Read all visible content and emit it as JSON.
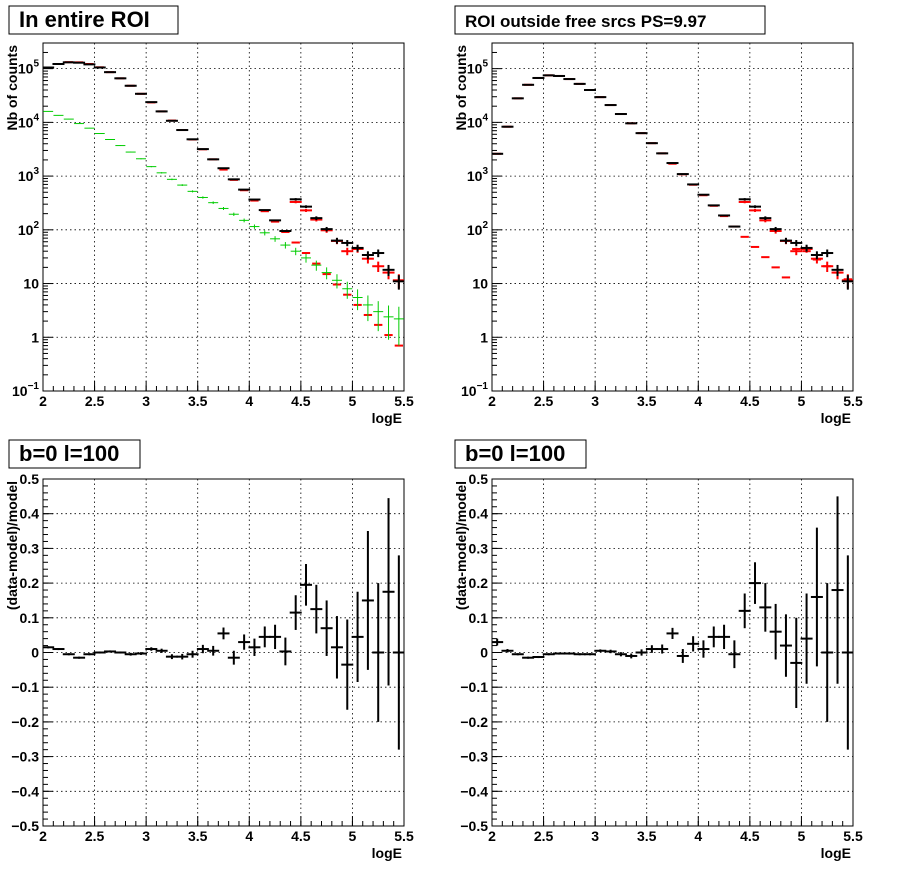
{
  "chart_data": [
    {
      "type": "scatter",
      "title": "In entire ROI",
      "xlabel": "logE",
      "ylabel": "Nb of counts",
      "xlim": [
        2,
        5.5
      ],
      "ylim": [
        0.1,
        300000
      ],
      "yscale": "log",
      "grid": true,
      "x_ticks": [
        "2",
        "2.5",
        "3",
        "3.5",
        "4",
        "4.5",
        "5",
        "5.5"
      ],
      "y_ticks": [
        {
          "value": 0.1,
          "base": "10",
          "exp": "−1"
        },
        {
          "value": 1,
          "base": "1",
          "exp": ""
        },
        {
          "value": 10,
          "base": "10",
          "exp": ""
        },
        {
          "value": 100,
          "base": "10",
          "exp": "2"
        },
        {
          "value": 1000,
          "base": "10",
          "exp": "3"
        },
        {
          "value": 10000,
          "base": "10",
          "exp": "4"
        },
        {
          "value": 100000,
          "base": "10",
          "exp": "5"
        }
      ],
      "series": [
        {
          "color": "#ff0000",
          "kind": "model",
          "x": [
            2.05,
            2.15,
            2.25,
            2.35,
            2.45,
            2.55,
            2.65,
            2.75,
            2.85,
            2.95,
            3.05,
            3.15,
            3.25,
            3.35,
            3.45,
            3.55,
            3.65,
            3.75,
            3.85,
            3.95,
            4.05,
            4.15,
            4.25,
            4.35,
            4.45,
            4.55,
            4.65,
            4.75,
            4.85,
            4.95,
            5.05,
            5.15,
            5.25,
            5.35,
            5.45
          ],
          "y": [
            105000,
            122000,
            132000,
            131000,
            122000,
            106000,
            86000,
            66000,
            48000,
            34000,
            23500,
            16000,
            10800,
            7200,
            4800,
            3150,
            2050,
            1320,
            850,
            545,
            350,
            222,
            142,
            91,
            58,
            37,
            23.5,
            15,
            9.6,
            6.2,
            4,
            2.6,
            1.7,
            1.1,
            0.7
          ],
          "err": [
            0,
            0,
            0,
            0,
            0,
            0,
            0,
            0,
            0,
            0,
            0,
            0,
            0,
            0,
            0,
            0,
            0,
            0,
            0,
            0,
            0,
            0,
            0,
            0,
            0,
            0,
            0,
            0,
            0,
            0,
            0,
            0,
            0,
            0,
            0
          ],
          "note": ""
        },
        {
          "color": "#ff0000",
          "kind": "model-red-crosses",
          "x": [
            4.45,
            4.55,
            4.65,
            4.75,
            4.85,
            4.95,
            5.05,
            5.15,
            5.25,
            5.35,
            5.45
          ],
          "y": [
            330,
            230,
            155,
            98,
            62,
            40,
            44,
            29,
            21,
            16,
            11.5
          ],
          "err": [
            18,
            15,
            12,
            10,
            8,
            6.3,
            6.6,
            5.4,
            4.6,
            4,
            3.4
          ]
        },
        {
          "color": "#000000",
          "kind": "data",
          "x": [
            2.05,
            2.15,
            2.25,
            2.35,
            2.45,
            2.55,
            2.65,
            2.75,
            2.85,
            2.95,
            3.05,
            3.15,
            3.25,
            3.35,
            3.45,
            3.55,
            3.65,
            3.75,
            3.85,
            3.95,
            4.05,
            4.15,
            4.25,
            4.35,
            4.45,
            4.55,
            4.65,
            4.75,
            4.85,
            4.95,
            5.05,
            5.15,
            5.25,
            5.35,
            5.45
          ],
          "y": [
            105000,
            122000,
            131000,
            129000,
            120000,
            105000,
            86000,
            66000,
            48000,
            34000,
            23800,
            16000,
            10700,
            7200,
            4840,
            3180,
            2050,
            1400,
            870,
            560,
            366,
            233,
            150,
            95,
            370,
            270,
            165,
            103,
            63,
            57,
            46,
            34,
            37,
            18,
            11
          ],
          "err": [
            0,
            0,
            0,
            0,
            0,
            0,
            0,
            0,
            0,
            0,
            0,
            0,
            0,
            0,
            0,
            0,
            0,
            0,
            0,
            0,
            0,
            0,
            0,
            0,
            19,
            16,
            13,
            10,
            8,
            7.5,
            6.8,
            5.8,
            6,
            4.2,
            3.3
          ]
        },
        {
          "color": "#00cc00",
          "kind": "component",
          "x": [
            2.05,
            2.15,
            2.25,
            2.35,
            2.45,
            2.55,
            2.65,
            2.75,
            2.85,
            2.95,
            3.05,
            3.15,
            3.25,
            3.35,
            3.45,
            3.55,
            3.65,
            3.75,
            3.85,
            3.95,
            4.05,
            4.15,
            4.25,
            4.35,
            4.45,
            4.55,
            4.65,
            4.75,
            4.85,
            4.95,
            5.05,
            5.15,
            5.25,
            5.35,
            5.45
          ],
          "y": [
            16000,
            13500,
            11500,
            9500,
            7800,
            6200,
            4800,
            3700,
            2800,
            2100,
            1500,
            1150,
            870,
            680,
            520,
            400,
            320,
            250,
            195,
            150,
            115,
            88,
            68,
            52,
            40,
            30,
            22,
            16,
            11.5,
            8,
            5.5,
            4,
            3,
            2.4,
            2.2
          ],
          "err": [
            126,
            116,
            107,
            97,
            88,
            79,
            69,
            61,
            53,
            46,
            39,
            34,
            30,
            26,
            23,
            20,
            18,
            16,
            14,
            12,
            10.7,
            9.4,
            8.2,
            7.2,
            6.3,
            5.5,
            4.7,
            4,
            3.4,
            2.8,
            2.3,
            2,
            1.7,
            1.5,
            1.5
          ]
        }
      ]
    },
    {
      "type": "scatter",
      "title": "ROI outside free srcs PS=9.97",
      "xlabel": "logE",
      "ylabel": "Nb of counts",
      "xlim": [
        2,
        5.5
      ],
      "ylim": [
        0.1,
        300000
      ],
      "yscale": "log",
      "grid": true,
      "x_ticks": [
        "2",
        "2.5",
        "3",
        "3.5",
        "4",
        "4.5",
        "5",
        "5.5"
      ],
      "y_ticks": [
        {
          "value": 0.1,
          "base": "10",
          "exp": "−1"
        },
        {
          "value": 1,
          "base": "1",
          "exp": ""
        },
        {
          "value": 10,
          "base": "10",
          "exp": ""
        },
        {
          "value": 100,
          "base": "10",
          "exp": "2"
        },
        {
          "value": 1000,
          "base": "10",
          "exp": "3"
        },
        {
          "value": 10000,
          "base": "10",
          "exp": "4"
        },
        {
          "value": 100000,
          "base": "10",
          "exp": "5"
        }
      ],
      "series": [
        {
          "color": "#ff0000",
          "kind": "model",
          "x": [
            2.05,
            2.15,
            2.25,
            2.35,
            2.45,
            2.55,
            2.65,
            2.75,
            2.85,
            2.95,
            3.05,
            3.15,
            3.25,
            3.35,
            3.45,
            3.55,
            3.65,
            3.75,
            3.85,
            3.95,
            4.05,
            4.15,
            4.25,
            4.35,
            4.45,
            4.55,
            4.65,
            4.75,
            4.85,
            4.95,
            5.05,
            5.15,
            5.25,
            5.35,
            5.45
          ],
          "y": [
            2600,
            8300,
            28000,
            50000,
            67000,
            75000,
            73000,
            64000,
            52000,
            40000,
            29500,
            21000,
            14300,
            9600,
            6300,
            4100,
            2650,
            1700,
            1080,
            690,
            440,
            280,
            180,
            115,
            74,
            48,
            31,
            20,
            13,
            44,
            40,
            28,
            21,
            16,
            12
          ],
          "err": [
            0,
            0,
            0,
            0,
            0,
            0,
            0,
            0,
            0,
            0,
            0,
            0,
            0,
            0,
            0,
            0,
            0,
            0,
            0,
            0,
            0,
            0,
            0,
            0,
            0,
            0,
            0,
            0,
            0,
            0,
            0,
            0,
            0,
            0,
            0
          ]
        },
        {
          "color": "#ff0000",
          "kind": "model-red-crosses",
          "x": [
            4.45,
            4.55,
            4.65,
            4.75,
            4.85,
            4.95,
            5.05,
            5.15,
            5.25,
            5.35,
            5.45
          ],
          "y": [
            330,
            230,
            150,
            95,
            62,
            40,
            44,
            29,
            21,
            16,
            11.5
          ],
          "err": [
            18,
            15,
            12,
            10,
            8,
            6.3,
            6.6,
            5.4,
            4.6,
            4,
            3.4
          ]
        },
        {
          "color": "#000000",
          "kind": "data",
          "x": [
            2.05,
            2.15,
            2.25,
            2.35,
            2.45,
            2.55,
            2.65,
            2.75,
            2.85,
            2.95,
            3.05,
            3.15,
            3.25,
            3.35,
            3.45,
            3.55,
            3.65,
            3.75,
            3.85,
            3.95,
            4.05,
            4.15,
            4.25,
            4.35,
            4.45,
            4.55,
            4.65,
            4.75,
            4.85,
            4.95,
            5.05,
            5.15,
            5.25,
            5.35,
            5.45
          ],
          "y": [
            2600,
            8300,
            28000,
            50000,
            67000,
            75000,
            73000,
            64000,
            52000,
            40000,
            29500,
            21000,
            14300,
            9600,
            6300,
            4100,
            2650,
            1750,
            1090,
            700,
            450,
            285,
            185,
            115,
            370,
            270,
            165,
            103,
            63,
            57,
            46,
            34,
            37,
            18,
            11
          ],
          "err": [
            0,
            0,
            0,
            0,
            0,
            0,
            0,
            0,
            0,
            0,
            0,
            0,
            0,
            0,
            0,
            0,
            0,
            0,
            0,
            0,
            0,
            0,
            0,
            0,
            19,
            16,
            13,
            10,
            8,
            7.5,
            6.8,
            5.8,
            6,
            4.2,
            3.3
          ]
        }
      ]
    },
    {
      "type": "scatter",
      "title": "b=0 l=100",
      "xlabel": "logE",
      "ylabel": "(data-model)/model",
      "xlim": [
        2,
        5.5
      ],
      "ylim": [
        -0.5,
        0.5
      ],
      "yscale": "linear",
      "grid": true,
      "x_ticks": [
        "2",
        "2.5",
        "3",
        "3.5",
        "4",
        "4.5",
        "5",
        "5.5"
      ],
      "y_ticks": [
        "−0.5",
        "−0.4",
        "−0.3",
        "−0.2",
        "−0.1",
        "0",
        "0.1",
        "0.2",
        "0.3",
        "0.4",
        "0.5"
      ],
      "series": [
        {
          "color": "#000000",
          "kind": "residual",
          "x": [
            2.05,
            2.15,
            2.25,
            2.35,
            2.45,
            2.55,
            2.65,
            2.75,
            2.85,
            2.95,
            3.05,
            3.15,
            3.25,
            3.35,
            3.45,
            3.55,
            3.65,
            3.75,
            3.85,
            3.95,
            4.05,
            4.15,
            4.25,
            4.35,
            4.45,
            4.55,
            4.65,
            4.75,
            4.85,
            4.95,
            5.05,
            5.15,
            5.25,
            5.35,
            5.45
          ],
          "y": [
            0.015,
            0.01,
            -0.005,
            -0.015,
            -0.005,
            0,
            0.003,
            0,
            -0.005,
            -0.003,
            0.01,
            0.005,
            -0.012,
            -0.012,
            -0.005,
            0.01,
            0.005,
            0.055,
            -0.015,
            0.03,
            0.015,
            0.045,
            0.045,
            0.003,
            0.115,
            0.195,
            0.125,
            0.07,
            0.015,
            -0.035,
            0.045,
            0.15,
            0,
            0.175,
            0
          ],
          "err": [
            0.003,
            0.003,
            0.003,
            0.003,
            0.003,
            0.003,
            0.003,
            0.003,
            0.004,
            0.004,
            0.005,
            0.006,
            0.007,
            0.008,
            0.01,
            0.012,
            0.014,
            0.017,
            0.02,
            0.022,
            0.025,
            0.03,
            0.035,
            0.04,
            0.05,
            0.06,
            0.07,
            0.08,
            0.09,
            0.13,
            0.13,
            0.2,
            0.2,
            0.27,
            0.28
          ]
        }
      ]
    },
    {
      "type": "scatter",
      "title": "b=0 l=100",
      "xlabel": "logE",
      "ylabel": "(data-model)/model",
      "xlim": [
        2,
        5.5
      ],
      "ylim": [
        -0.5,
        0.5
      ],
      "yscale": "linear",
      "grid": true,
      "x_ticks": [
        "2",
        "2.5",
        "3",
        "3.5",
        "4",
        "4.5",
        "5",
        "5.5"
      ],
      "y_ticks": [
        "−0.5",
        "−0.4",
        "−0.3",
        "−0.2",
        "−0.1",
        "0",
        "0.1",
        "0.2",
        "0.3",
        "0.4",
        "0.5"
      ],
      "series": [
        {
          "color": "#000000",
          "kind": "residual",
          "x": [
            2.05,
            2.15,
            2.25,
            2.35,
            2.45,
            2.55,
            2.65,
            2.75,
            2.85,
            2.95,
            3.05,
            3.15,
            3.25,
            3.35,
            3.45,
            3.55,
            3.65,
            3.75,
            3.85,
            3.95,
            4.05,
            4.15,
            4.25,
            4.35,
            4.45,
            4.55,
            4.65,
            4.75,
            4.85,
            4.95,
            5.05,
            5.15,
            5.25,
            5.35,
            5.45
          ],
          "y": [
            0.03,
            0.005,
            -0.005,
            -0.015,
            -0.013,
            -0.005,
            -0.003,
            -0.003,
            -0.005,
            -0.005,
            0.005,
            0.003,
            -0.005,
            -0.01,
            0,
            0.01,
            0.01,
            0.055,
            -0.01,
            0.025,
            0.01,
            0.045,
            0.045,
            -0.005,
            0.12,
            0.2,
            0.13,
            0.06,
            0.02,
            -0.03,
            0.04,
            0.16,
            0,
            0.18,
            0
          ],
          "err": [
            0.01,
            0.005,
            0.003,
            0.003,
            0.003,
            0.003,
            0.003,
            0.003,
            0.003,
            0.003,
            0.004,
            0.005,
            0.006,
            0.007,
            0.009,
            0.011,
            0.013,
            0.016,
            0.02,
            0.022,
            0.025,
            0.03,
            0.035,
            0.04,
            0.05,
            0.06,
            0.07,
            0.08,
            0.09,
            0.13,
            0.13,
            0.2,
            0.2,
            0.27,
            0.28
          ]
        }
      ]
    }
  ]
}
